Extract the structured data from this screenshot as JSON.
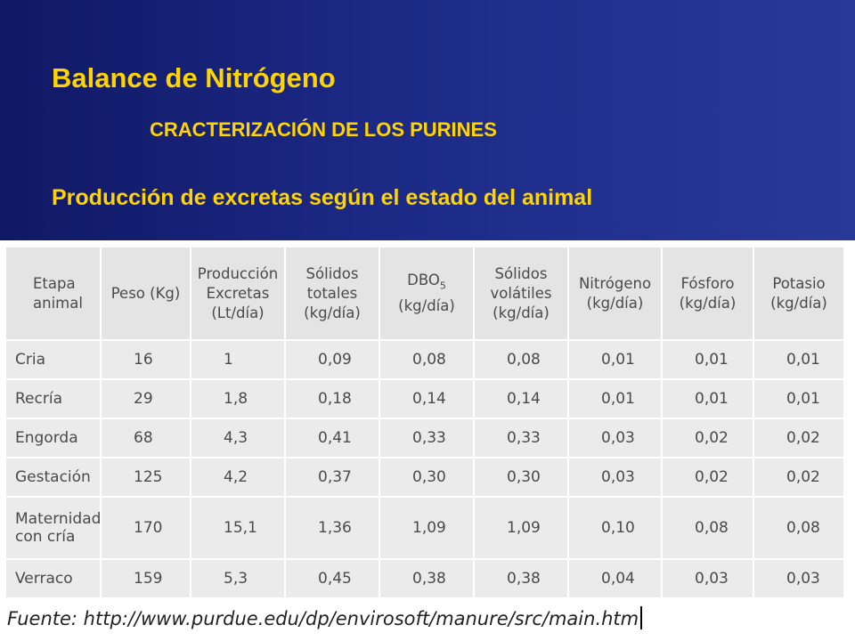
{
  "slide": {
    "title": "Balance de Nitrógeno",
    "subtitle": "CRACTERIZACIÓN DE LOS PURINES",
    "caption": "Producción de excretas según el estado del animal"
  },
  "table": {
    "headers": {
      "etapa": [
        "Etapa",
        "animal"
      ],
      "peso": "Peso (Kg)",
      "produccion": [
        "Producción",
        "Excretas",
        "(Lt/día)"
      ],
      "solidos_totales": [
        "Sólidos",
        "totales",
        "(kg/día)"
      ],
      "dbo": {
        "main": "DBO",
        "sub": "5",
        "unit": "(kg/día)"
      },
      "solidos_volatiles": [
        "Sólidos",
        "volátiles",
        "(kg/día)"
      ],
      "nitrogeno": [
        "Nitrógeno",
        "(kg/día)"
      ],
      "fosforo": [
        "Fósforo",
        "(kg/día)"
      ],
      "potasio": [
        "Potasio",
        "(kg/día)"
      ]
    },
    "rows": [
      {
        "etapa": "Cria",
        "etapa2": "",
        "peso": "16",
        "produccion": "1",
        "solidos_totales": "0,09",
        "dbo": "0,08",
        "solidos_volatiles": "0,08",
        "nitrogeno": "0,01",
        "fosforo": "0,01",
        "potasio": "0,01"
      },
      {
        "etapa": "Recría",
        "etapa2": "",
        "peso": "29",
        "produccion": "1,8",
        "solidos_totales": "0,18",
        "dbo": "0,14",
        "solidos_volatiles": "0,14",
        "nitrogeno": "0,01",
        "fosforo": "0,01",
        "potasio": "0,01"
      },
      {
        "etapa": "Engorda",
        "etapa2": "",
        "peso": "68",
        "produccion": "4,3",
        "solidos_totales": "0,41",
        "dbo": "0,33",
        "solidos_volatiles": "0,33",
        "nitrogeno": "0,03",
        "fosforo": "0,02",
        "potasio": "0,02"
      },
      {
        "etapa": "Gestación",
        "etapa2": "",
        "peso": "125",
        "produccion": "4,2",
        "solidos_totales": "0,37",
        "dbo": "0,30",
        "solidos_volatiles": "0,30",
        "nitrogeno": "0,03",
        "fosforo": "0,02",
        "potasio": "0,02"
      },
      {
        "etapa": "Maternidad",
        "etapa2": "con cría",
        "peso": "170",
        "produccion": "15,1",
        "solidos_totales": "1,36",
        "dbo": "1,09",
        "solidos_volatiles": "1,09",
        "nitrogeno": "0,10",
        "fosforo": "0,08",
        "potasio": "0,08"
      },
      {
        "etapa": "Verraco",
        "etapa2": "",
        "peso": "159",
        "produccion": "5,3",
        "solidos_totales": "0,45",
        "dbo": "0,38",
        "solidos_volatiles": "0,38",
        "nitrogeno": "0,04",
        "fosforo": "0,03",
        "potasio": "0,03"
      }
    ]
  },
  "source": "Fuente: http://www.purdue.edu/dp/envirosoft/manure/src/main.htm",
  "colors": {
    "header_background": "#1c2a86",
    "title_text": "#ffd400",
    "table_cell": "#ebebeb",
    "table_text": "#4a4a4a"
  }
}
